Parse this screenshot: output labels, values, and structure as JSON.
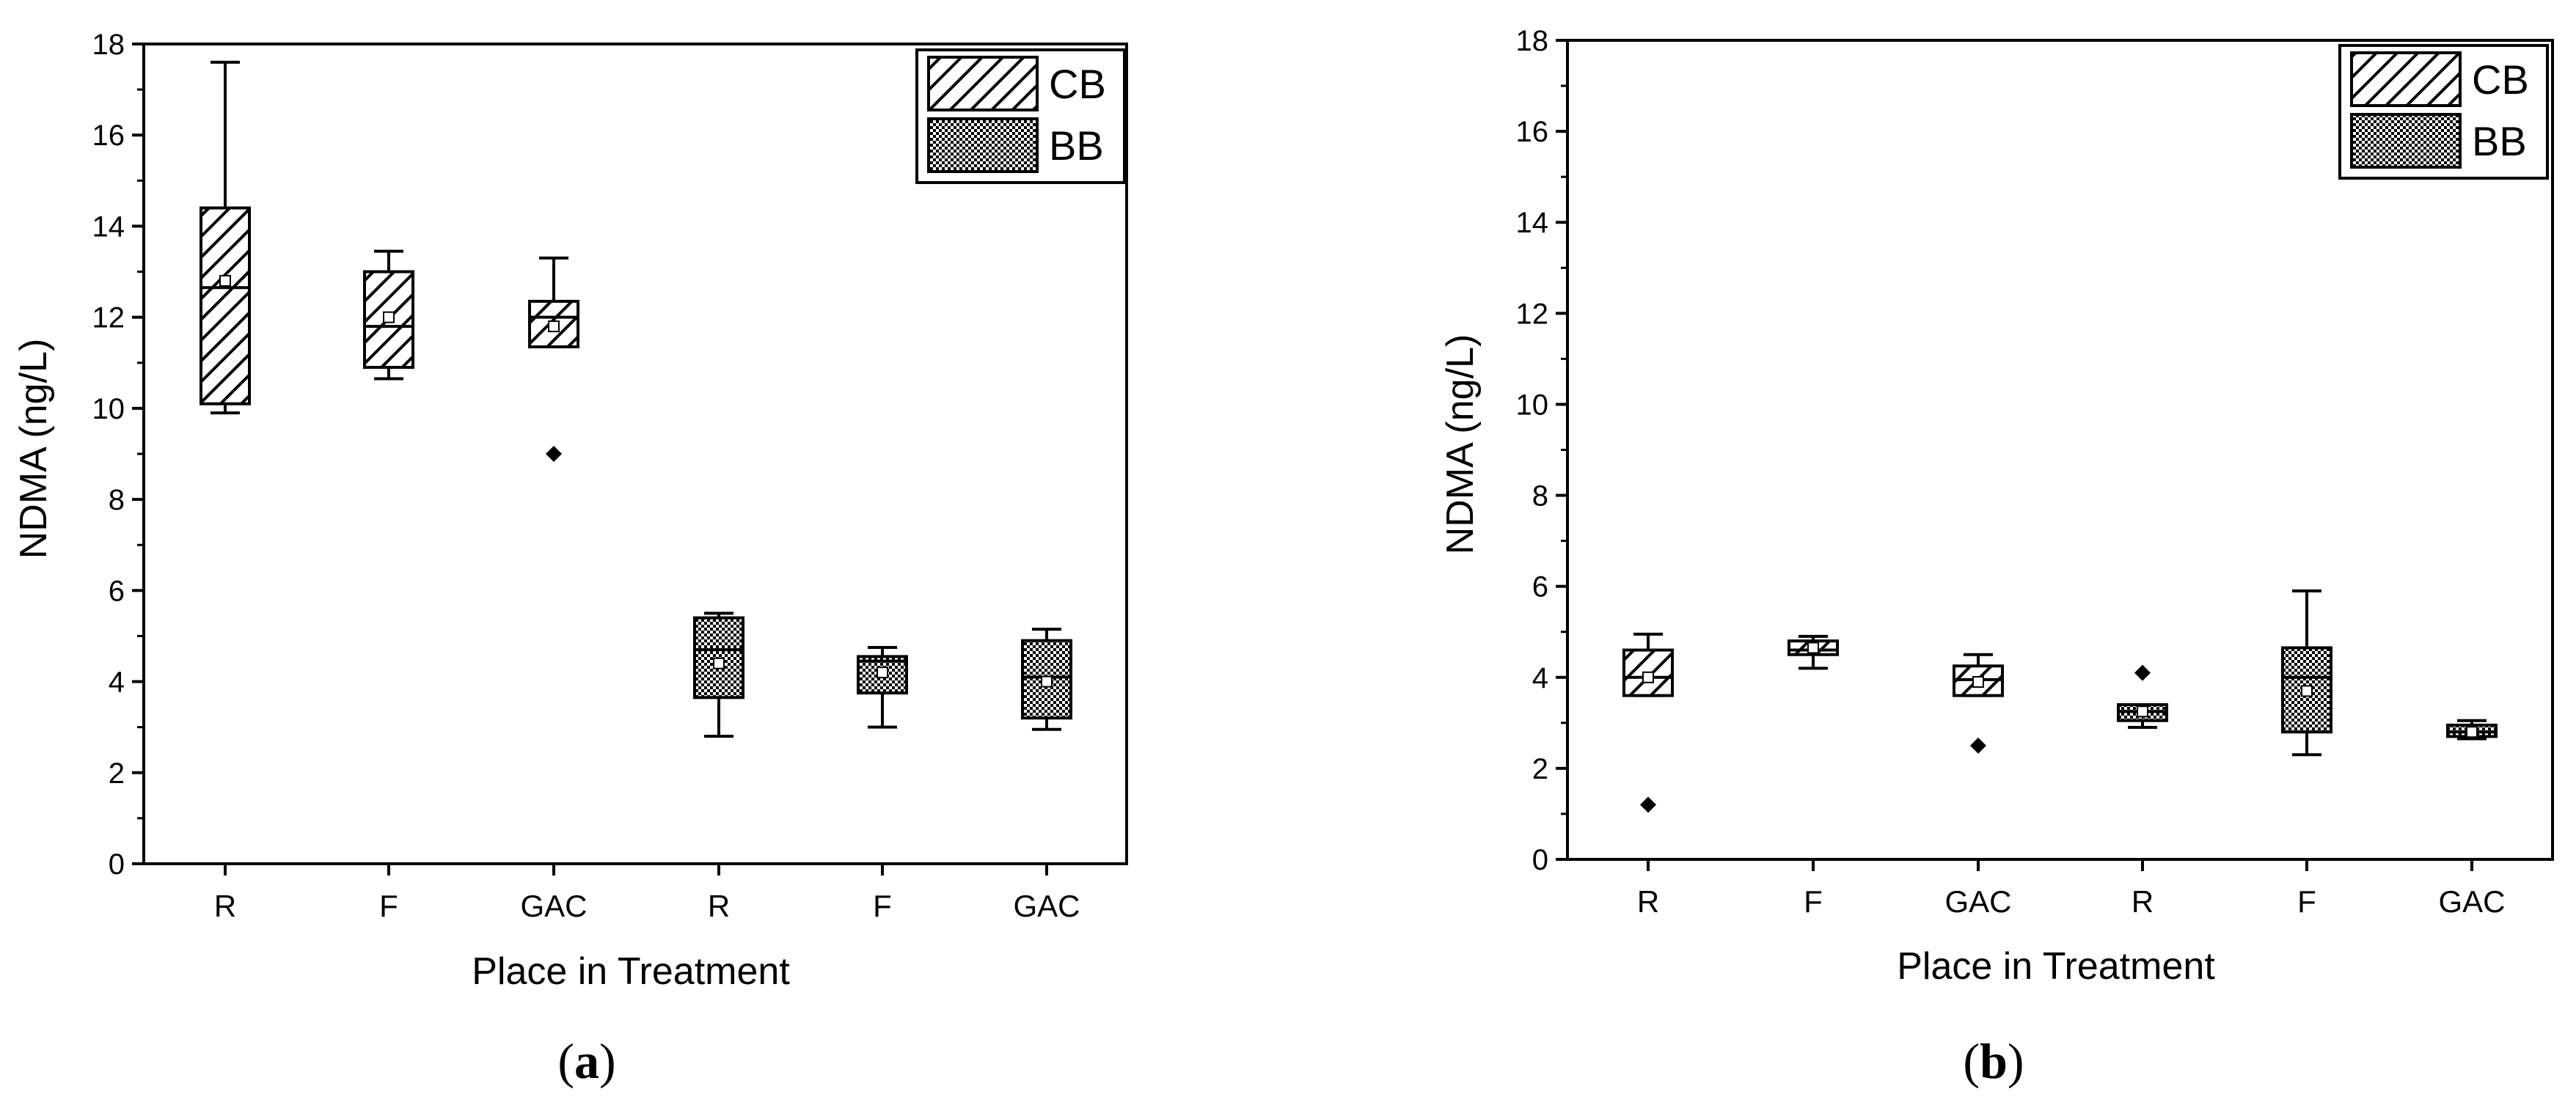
{
  "chart_data": [
    {
      "panel_label": "a",
      "type": "box",
      "xlabel": "Place in Treatment",
      "ylabel": "NDMA (ng/L)",
      "ylim": [
        0,
        18
      ],
      "yticks": [
        "0",
        "2",
        "4",
        "6",
        "8",
        "10",
        "12",
        "14",
        "16",
        "18"
      ],
      "categories": [
        "R",
        "F",
        "GAC",
        "R",
        "F",
        "GAC"
      ],
      "legend": {
        "placement": "top-right",
        "entries": [
          {
            "label": "CB",
            "pattern": "hatch"
          },
          {
            "label": "BB",
            "pattern": "dots"
          }
        ]
      },
      "boxes": [
        {
          "category": "R",
          "group": "CB",
          "min": 9.9,
          "q1": 10.1,
          "median": 12.65,
          "mean": 12.8,
          "q3": 14.4,
          "max": 17.6,
          "outliers": []
        },
        {
          "category": "F",
          "group": "CB",
          "min": 10.65,
          "q1": 10.9,
          "median": 11.8,
          "mean": 12.0,
          "q3": 13.0,
          "max": 13.45,
          "outliers": []
        },
        {
          "category": "GAC",
          "group": "CB",
          "min": 11.35,
          "q1": 11.35,
          "median": 12.0,
          "mean": 11.8,
          "q3": 12.35,
          "max": 13.3,
          "outliers": [
            9.0
          ]
        },
        {
          "category": "R",
          "group": "BB",
          "min": 2.8,
          "q1": 3.65,
          "median": 4.7,
          "mean": 4.4,
          "q3": 5.4,
          "max": 5.5,
          "outliers": []
        },
        {
          "category": "F",
          "group": "BB",
          "min": 3.0,
          "q1": 3.75,
          "median": 4.45,
          "mean": 4.2,
          "q3": 4.55,
          "max": 4.75,
          "outliers": []
        },
        {
          "category": "GAC",
          "group": "BB",
          "min": 2.95,
          "q1": 3.2,
          "median": 4.1,
          "mean": 4.0,
          "q3": 4.9,
          "max": 5.15,
          "outliers": []
        }
      ]
    },
    {
      "panel_label": "b",
      "type": "box",
      "xlabel": "Place in Treatment",
      "ylabel": "NDMA (ng/L)",
      "ylim": [
        0,
        18
      ],
      "yticks": [
        "0",
        "2",
        "4",
        "6",
        "8",
        "10",
        "12",
        "14",
        "16",
        "18"
      ],
      "categories": [
        "R",
        "F",
        "GAC",
        "R",
        "F",
        "GAC"
      ],
      "legend": {
        "placement": "top-right",
        "entries": [
          {
            "label": "CB",
            "pattern": "hatch"
          },
          {
            "label": "BB",
            "pattern": "dots"
          }
        ]
      },
      "boxes": [
        {
          "category": "R",
          "group": "CB",
          "min": 3.6,
          "q1": 3.6,
          "median": 4.0,
          "mean": 4.0,
          "q3": 4.6,
          "max": 4.95,
          "outliers": [
            1.2
          ]
        },
        {
          "category": "F",
          "group": "CB",
          "min": 4.2,
          "q1": 4.5,
          "median": 4.6,
          "mean": 4.65,
          "q3": 4.8,
          "max": 4.9,
          "outliers": []
        },
        {
          "category": "GAC",
          "group": "CB",
          "min": 3.6,
          "q1": 3.6,
          "median": 3.95,
          "mean": 3.9,
          "q3": 4.25,
          "max": 4.5,
          "outliers": [
            2.5
          ]
        },
        {
          "category": "R",
          "group": "BB",
          "min": 2.9,
          "q1": 3.05,
          "median": 3.25,
          "mean": 3.25,
          "q3": 3.4,
          "max": 3.4,
          "outliers": [
            4.1
          ]
        },
        {
          "category": "F",
          "group": "BB",
          "min": 2.3,
          "q1": 2.8,
          "median": 4.0,
          "mean": 3.7,
          "q3": 4.65,
          "max": 5.9,
          "outliers": []
        },
        {
          "category": "GAC",
          "group": "BB",
          "min": 2.65,
          "q1": 2.7,
          "median": 2.8,
          "mean": 2.8,
          "q3": 2.95,
          "max": 3.05,
          "outliers": []
        }
      ]
    }
  ]
}
